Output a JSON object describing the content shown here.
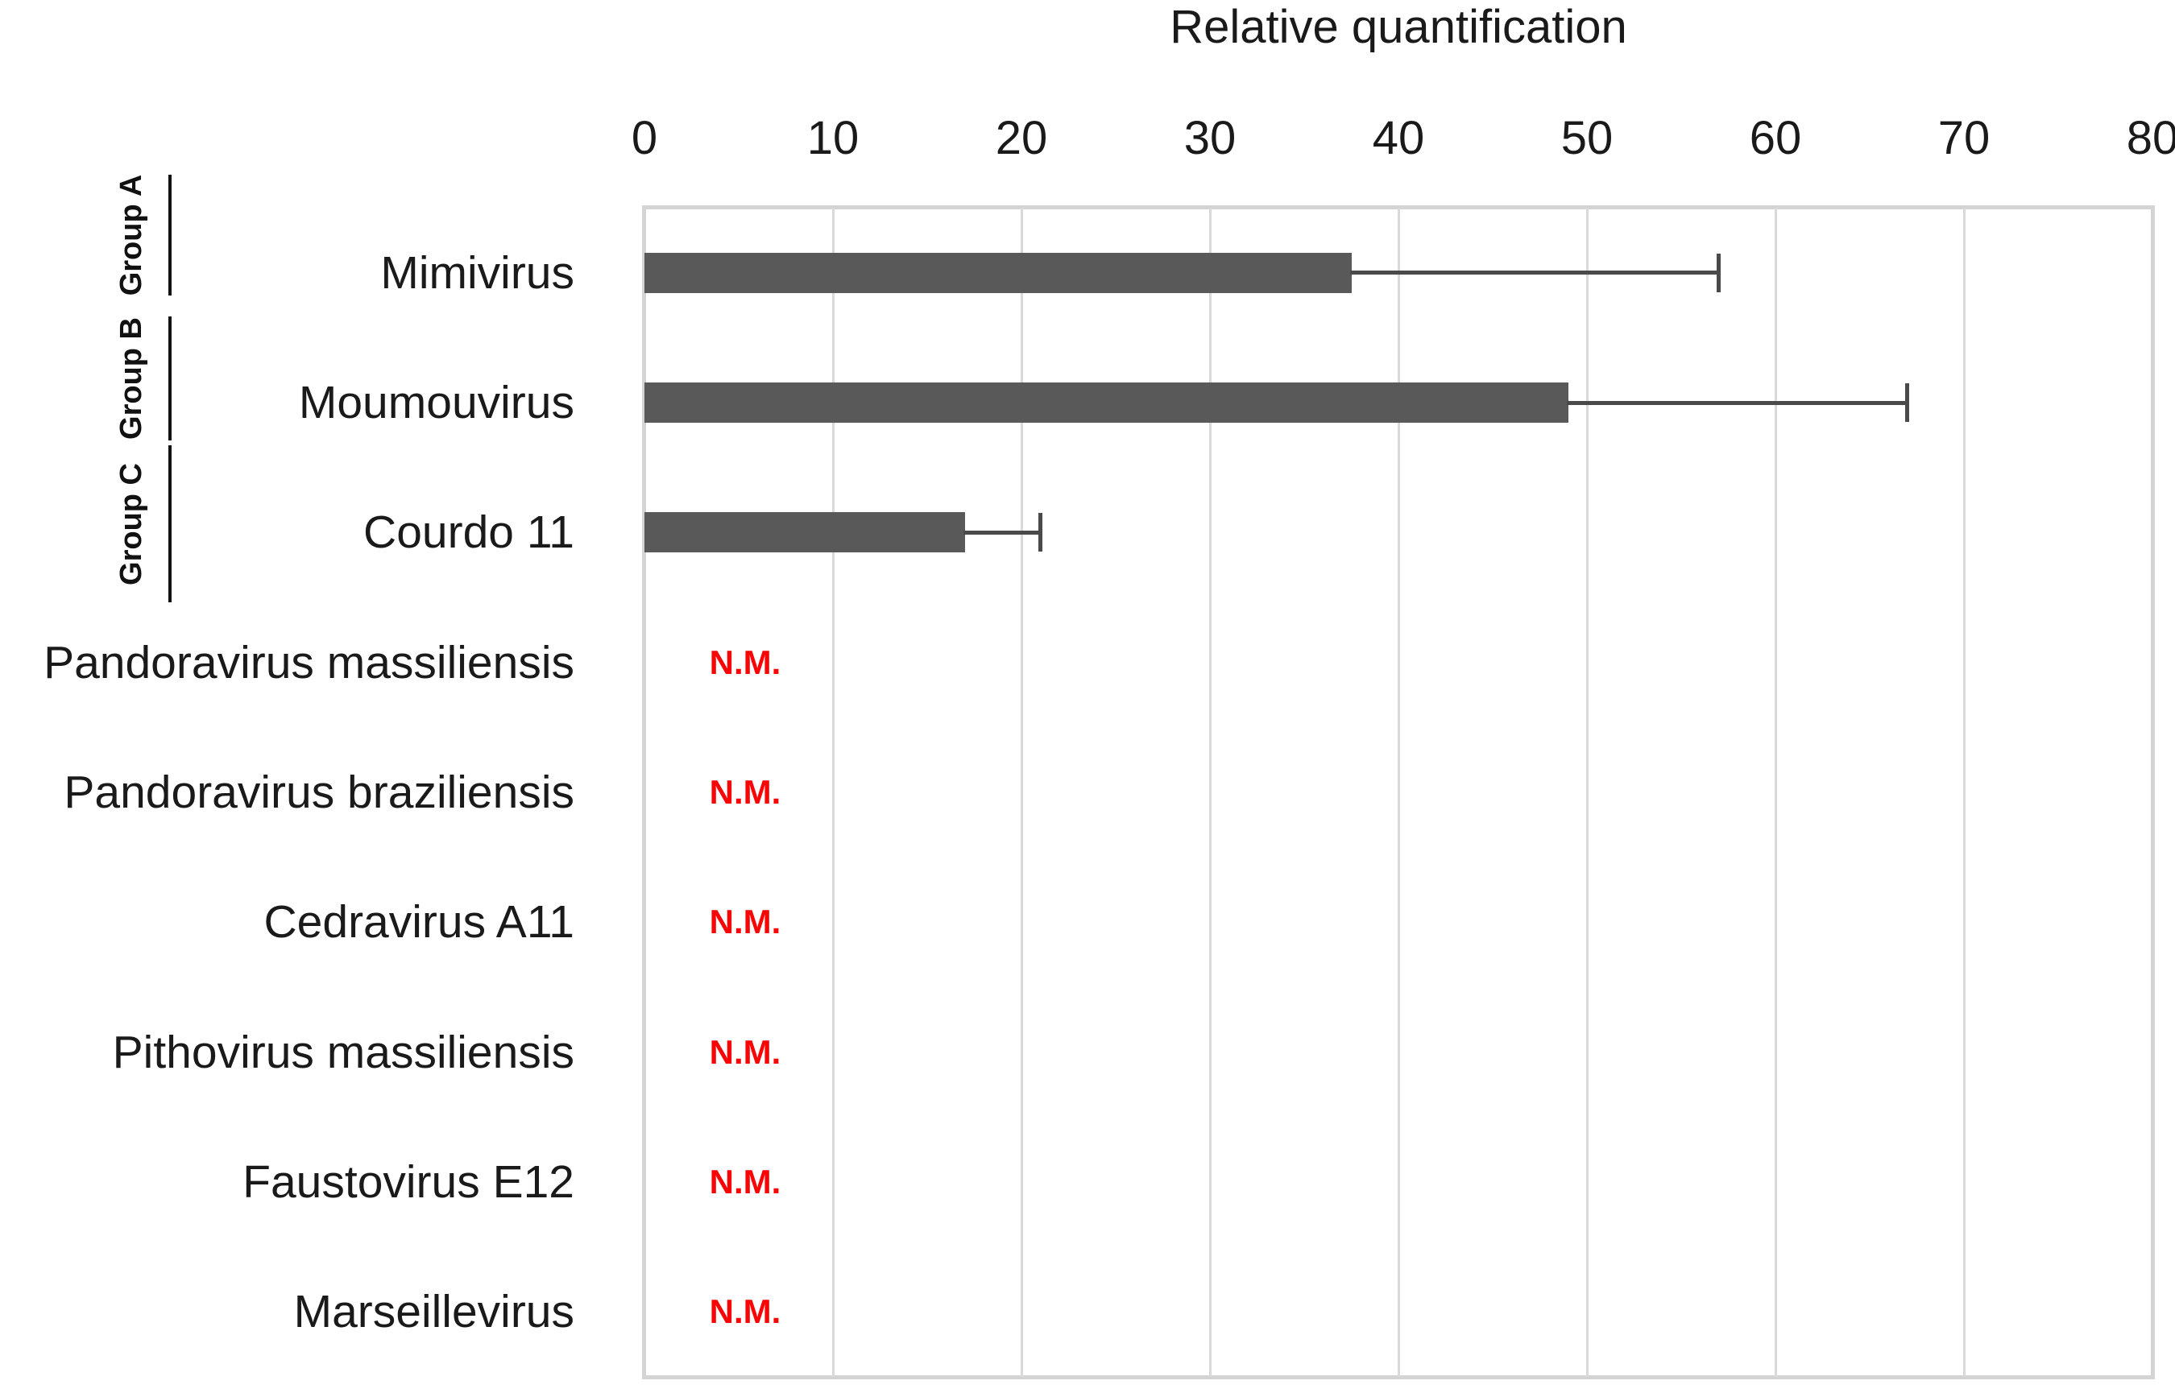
{
  "title": "Relative quantification",
  "axis": {
    "min": 0,
    "max": 80,
    "tick_labels": [
      "0",
      "10",
      "20",
      "30",
      "40",
      "50",
      "60",
      "70",
      "80"
    ]
  },
  "groups": [
    "Group A",
    "Group B",
    "Group C"
  ],
  "not_measured_text": "N.M.",
  "colors": {
    "bar": "#595959",
    "error_bar": "#4a4a4a",
    "gridline": "#d9d9d9",
    "plot_border": "#d4d4d4",
    "nm_text": "#f80505",
    "text": "#1a1a1a",
    "bracket": "#111111"
  },
  "chart_data": {
    "type": "bar",
    "orientation": "horizontal",
    "title": "Relative quantification",
    "categories": [
      "Mimivirus",
      "Moumouvirus",
      "Courdo 11",
      "Pandoravirus massiliensis",
      "Pandoravirus braziliensis",
      "Cedravirus A11",
      "Pithovirus massiliensis",
      "Faustovirus E12",
      "Marseillevirus"
    ],
    "values": [
      37.5,
      49,
      17,
      null,
      null,
      null,
      null,
      null,
      null
    ],
    "error_high": [
      57,
      67,
      21,
      null,
      null,
      null,
      null,
      null,
      null
    ],
    "annotations": [
      null,
      null,
      null,
      "N.M.",
      "N.M.",
      "N.M.",
      "N.M.",
      "N.M.",
      "N.M."
    ],
    "category_groups": [
      "Group A",
      "Group B",
      "Group C",
      null,
      null,
      null,
      null,
      null,
      null
    ],
    "xlabel": "",
    "ylabel": "",
    "xlim": [
      0,
      80
    ],
    "x_ticks": [
      0,
      10,
      20,
      30,
      40,
      50,
      60,
      70,
      80
    ],
    "grid": "vertical",
    "legend": false
  }
}
